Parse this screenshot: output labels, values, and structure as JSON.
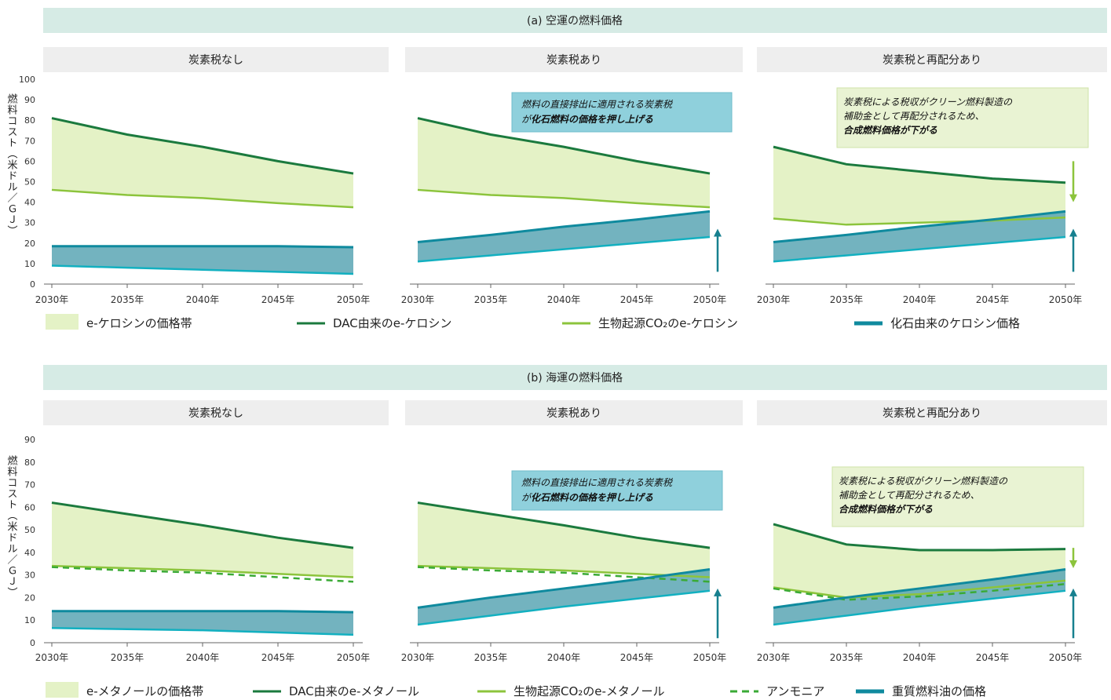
{
  "colors": {
    "band_light": "#e4f2c6",
    "band_fossil": "#5ba6b4",
    "dac": "#1b7a3e",
    "bio": "#8cc43c",
    "ammonia": "#3aaa35",
    "fossil_line": "#0f8a9e",
    "fossil_low": "#12b0c0",
    "header_bg": "#d6ebe5",
    "subheader_bg": "#eeeeee",
    "annotation_blue_bg": "#8fd0dc",
    "annotation_green_bg": "#e9f3d3",
    "arrow_up": "#17808f",
    "arrow_down": "#8cc43c",
    "axis": "#666666",
    "tick_text": "#333333"
  },
  "panel_titles": [
    "炭素税なし",
    "炭素税あり",
    "炭素税と再配分あり"
  ],
  "ylabel": "燃料コスト（米ドル／ＧＪ）",
  "chart_data": [
    {
      "type": "area",
      "title": "(a) 空運の燃料価格",
      "x": [
        "2030年",
        "2035年",
        "2040年",
        "2045年",
        "2050年"
      ],
      "ylim": [
        0,
        100
      ],
      "yticks": [
        0,
        10,
        20,
        30,
        40,
        50,
        60,
        70,
        80,
        90,
        100
      ],
      "legend": [
        {
          "label": "e-ケロシンの価格帯",
          "style": "band"
        },
        {
          "label": "DAC由来のe-ケロシン",
          "style": "dac"
        },
        {
          "label": "生物起源CO₂のe-ケロシン",
          "style": "bio"
        },
        {
          "label": "化石由来のケロシン価格",
          "style": "fossil"
        }
      ],
      "annotation_blue": {
        "line1": "燃料の直接排出に適用される炭素税",
        "line2_prefix": "が",
        "line2_bold": "化石燃料の価格を押し上げる"
      },
      "annotation_green": {
        "line1": "炭素税による税収がクリーン燃料製造の",
        "line2": "補助金として再配分されるため、",
        "line3_bold": "合成燃料価格が下がる"
      },
      "panels": [
        {
          "title": "炭素税なし",
          "dac": [
            81,
            73,
            67,
            60,
            54
          ],
          "bio": [
            46,
            43.5,
            42,
            39.5,
            37.5
          ],
          "fossil_high": [
            18.5,
            18.5,
            18.5,
            18.5,
            18
          ],
          "fossil_low": [
            9,
            8,
            7,
            6,
            5
          ],
          "arrows": []
        },
        {
          "title": "炭素税あり",
          "dac": [
            81,
            73,
            67,
            60,
            54
          ],
          "bio": [
            46,
            43.5,
            42,
            39.5,
            37.5
          ],
          "fossil_high": [
            20.5,
            24,
            28,
            31.5,
            35.5
          ],
          "fossil_low": [
            11,
            14,
            17,
            20,
            23
          ],
          "arrows": [
            "up"
          ]
        },
        {
          "title": "炭素税と再配分あり",
          "dac": [
            67,
            58.5,
            55,
            51.5,
            49.5
          ],
          "bio": [
            32,
            29,
            30,
            31,
            32.5
          ],
          "fossil_high": [
            20.5,
            24,
            28,
            31.5,
            35.5
          ],
          "fossil_low": [
            11,
            14,
            17,
            20,
            23
          ],
          "arrows": [
            "up",
            "down"
          ]
        }
      ]
    },
    {
      "type": "area",
      "title": "(b) 海運の燃料価格",
      "x": [
        "2030年",
        "2035年",
        "2040年",
        "2045年",
        "2050年"
      ],
      "ylim": [
        0,
        90
      ],
      "yticks": [
        0,
        10,
        20,
        30,
        40,
        50,
        60,
        70,
        80,
        90
      ],
      "legend": [
        {
          "label": "e-メタノールの価格帯",
          "style": "band"
        },
        {
          "label": "DAC由来のe-メタノール",
          "style": "dac"
        },
        {
          "label": "生物起源CO₂のe-メタノール",
          "style": "bio"
        },
        {
          "label": "アンモニア",
          "style": "ammonia"
        },
        {
          "label": "重質燃料油の価格",
          "style": "fossil"
        }
      ],
      "annotation_blue": {
        "line1": "燃料の直接排出に適用される炭素税",
        "line2_prefix": "が",
        "line2_bold": "化石燃料の価格を押し上げる"
      },
      "annotation_green": {
        "line1": "炭素税による税収がクリーン燃料製造の",
        "line2": "補助金として再配分されるため、",
        "line3_bold": "合成燃料価格が下がる"
      },
      "panels": [
        {
          "title": "炭素税なし",
          "dac": [
            62,
            57,
            52,
            46.5,
            42
          ],
          "bio": [
            34,
            33,
            32,
            30.5,
            29
          ],
          "ammonia": [
            33.5,
            32,
            31,
            29,
            27
          ],
          "fossil_high": [
            14,
            14,
            14,
            14,
            13.5
          ],
          "fossil_low": [
            6.5,
            6,
            5.5,
            4.5,
            3.5
          ],
          "arrows": []
        },
        {
          "title": "炭素税あり",
          "dac": [
            62,
            57,
            52,
            46.5,
            42
          ],
          "bio": [
            34,
            33,
            32,
            30.5,
            29
          ],
          "ammonia": [
            33.5,
            32,
            31,
            29,
            27
          ],
          "fossil_high": [
            15.5,
            20,
            24,
            28,
            32.5
          ],
          "fossil_low": [
            8,
            12,
            16,
            19.5,
            23
          ],
          "arrows": [
            "up"
          ]
        },
        {
          "title": "炭素税と再配分あり",
          "dac": [
            52.5,
            43.5,
            41,
            41,
            41.5
          ],
          "bio": [
            24.5,
            20,
            21.5,
            24.5,
            27.5
          ],
          "ammonia": [
            24,
            19,
            20.5,
            23,
            26
          ],
          "fossil_high": [
            15.5,
            20,
            24,
            28,
            32.5
          ],
          "fossil_low": [
            8,
            12,
            16,
            19.5,
            23
          ],
          "arrows": [
            "up",
            "down"
          ]
        }
      ]
    }
  ]
}
